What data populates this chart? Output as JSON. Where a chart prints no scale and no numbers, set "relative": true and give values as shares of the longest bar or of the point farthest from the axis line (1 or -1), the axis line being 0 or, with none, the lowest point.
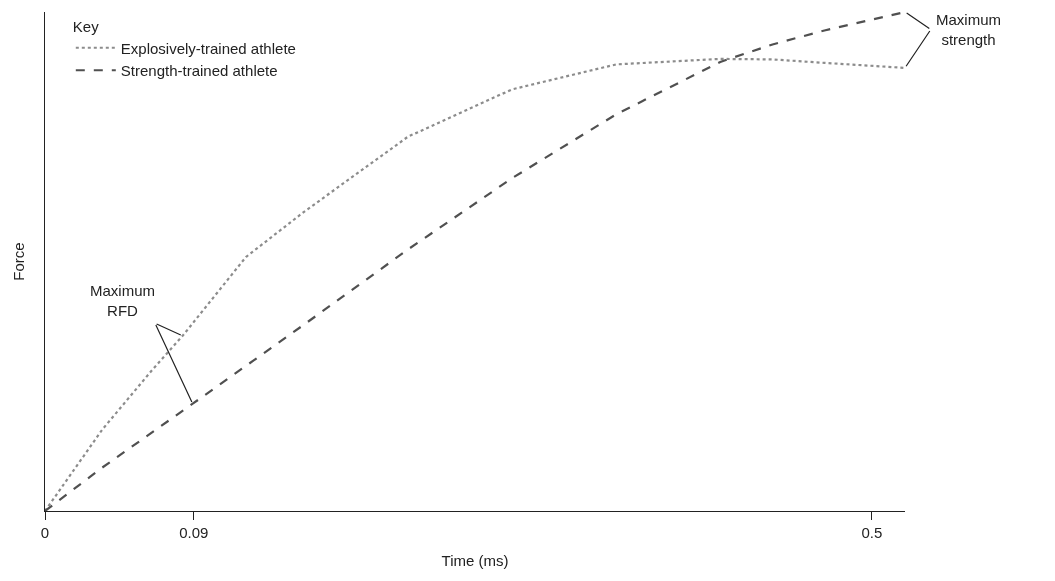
{
  "chart_data": {
    "type": "line",
    "xlabel": "Time (ms)",
    "ylabel": "Force",
    "legend_title": "Key",
    "relative": true,
    "xlim": [
      0,
      0.52
    ],
    "xticks": [
      0,
      0.09,
      0.5
    ],
    "tick_labels": "x",
    "grid": false,
    "legend": "top left",
    "marker": "none",
    "series": [
      {
        "name": "Explosively-trained athlete",
        "color": "#8c8c8c",
        "line_style": "dotted",
        "x": [
          0,
          0.0346,
          0.0649,
          0.0832,
          0.1215,
          0.1564,
          0.2194,
          0.2824,
          0.3454,
          0.4083,
          0.4399,
          0.4713,
          0.52
        ],
        "values": [
          0,
          0.163,
          0.283,
          0.351,
          0.509,
          0.599,
          0.75,
          0.845,
          0.895,
          0.906,
          0.905,
          0.898,
          0.888
        ]
      },
      {
        "name": "Strength-trained athlete",
        "color": "#505050",
        "line_style": "dashed",
        "x": [
          0,
          0.0346,
          0.0893,
          0.1564,
          0.2194,
          0.2824,
          0.3454,
          0.4083,
          0.4399,
          0.4713,
          0.52
        ],
        "values": [
          0,
          0.087,
          0.215,
          0.373,
          0.524,
          0.667,
          0.795,
          0.9,
          0.935,
          0.963,
          1
        ]
      }
    ],
    "annotations": [
      {
        "text": "Maximum strength",
        "x": 0.52,
        "y": 1
      },
      {
        "text": "Maximum RFD",
        "x": 0.0832,
        "y": 0.351
      }
    ]
  }
}
